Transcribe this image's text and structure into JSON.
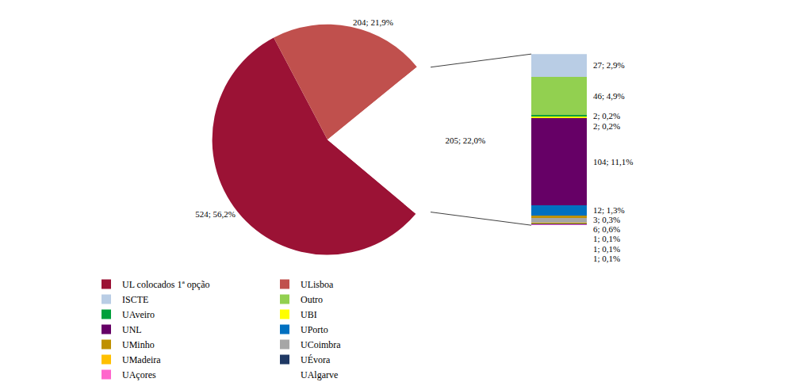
{
  "chart_data": [
    {
      "type": "pie",
      "categories": [
        "UL colocados 1ª opção",
        "ULisboa",
        null
      ],
      "values": [
        524,
        204,
        205
      ],
      "value_labels": [
        "524; 56,2%",
        "204; 21,9%",
        "205; 22,0%"
      ],
      "colors": [
        "#9b1235",
        "#c0504d",
        "#ffffff"
      ],
      "data_labels": true
    },
    {
      "type": "bar",
      "stacked": true,
      "data_labels": true,
      "tick_labels": false,
      "legend": "bottom",
      "categories": [
        null
      ],
      "ylim": [
        0,
        205
      ],
      "series": [
        {
          "name": "ISCTE",
          "color": "#b9cde5",
          "values": [
            27
          ],
          "value_labels": [
            "27; 2,9%"
          ]
        },
        {
          "name": "Outro",
          "color": "#92d050",
          "values": [
            46
          ],
          "value_labels": [
            "46; 4,9%"
          ]
        },
        {
          "name": "UAveiro",
          "color": "#00a03c",
          "values": [
            2
          ],
          "value_labels": [
            "2; 0,2%"
          ]
        },
        {
          "name": "UBI",
          "color": "#ffff00",
          "values": [
            2
          ],
          "value_labels": [
            "2; 0,2%"
          ]
        },
        {
          "name": "UNL",
          "color": "#660066",
          "values": [
            104
          ],
          "value_labels": [
            "104; 11,1%"
          ]
        },
        {
          "name": "UPorto",
          "color": "#0070c0",
          "values": [
            12
          ],
          "value_labels": [
            "12; 1,3%"
          ]
        },
        {
          "name": "UMinho",
          "color": "#bf9000",
          "values": [
            3
          ],
          "value_labels": [
            "3; 0,3%"
          ]
        },
        {
          "name": "UCoimbra",
          "color": "#a6a6a6",
          "values": [
            6
          ],
          "value_labels": [
            "6; 0,6%"
          ]
        },
        {
          "name": "UMadeira",
          "color": "#ffc000",
          "values": [
            1
          ],
          "value_labels": [
            "1; 0,1%"
          ]
        },
        {
          "name": "UÉvora",
          "color": "#1f3864",
          "values": [
            1
          ],
          "value_labels": [
            "1; 0,1%"
          ]
        },
        {
          "name": "UAçores",
          "color": "#ff66cc",
          "values": [
            1
          ],
          "value_labels": [
            "1; 0,1%"
          ]
        },
        {
          "name": "UAlgarve",
          "color": "#ffffff",
          "values": [
            0
          ]
        }
      ]
    }
  ]
}
